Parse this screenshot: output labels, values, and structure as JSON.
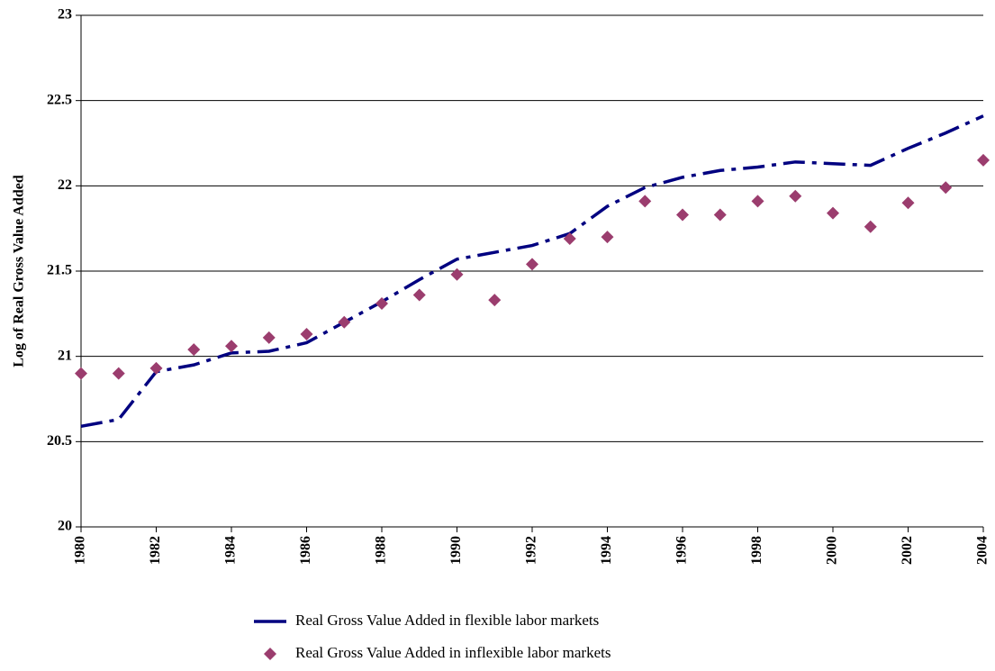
{
  "chart_data": {
    "type": "line",
    "y_label": "Log of Real Gross Value Added",
    "x": [
      1980,
      1981,
      1982,
      1983,
      1984,
      1985,
      1986,
      1987,
      1988,
      1989,
      1990,
      1991,
      1992,
      1993,
      1994,
      1995,
      1996,
      1997,
      1998,
      1999,
      2000,
      2001,
      2002,
      2003,
      2004
    ],
    "xlim": [
      1980,
      2004
    ],
    "xticks": [
      1980,
      1982,
      1984,
      1986,
      1988,
      1990,
      1992,
      1994,
      1996,
      1998,
      2000,
      2002,
      2004
    ],
    "ylim": [
      20,
      23
    ],
    "yticks": [
      20,
      20.5,
      21,
      21.5,
      22,
      22.5,
      23
    ],
    "grid": true,
    "legend": "bottom",
    "series": [
      {
        "name": "Real Gross Value Added in flexible labor markets",
        "type": "line",
        "color": "#000080",
        "values": [
          20.59,
          20.63,
          20.91,
          20.95,
          21.02,
          21.03,
          21.08,
          21.2,
          21.32,
          21.45,
          21.57,
          21.61,
          21.65,
          21.72,
          21.88,
          21.99,
          22.05,
          22.09,
          22.11,
          22.14,
          22.13,
          22.12,
          22.22,
          22.31,
          22.41
        ]
      },
      {
        "name": "Real Gross Value Added in inflexible labor markets",
        "type": "scatter",
        "color": "#9b3d6e",
        "values": [
          20.9,
          20.9,
          20.93,
          21.04,
          21.06,
          21.11,
          21.13,
          21.2,
          21.31,
          21.36,
          21.48,
          21.33,
          21.54,
          21.69,
          21.7,
          21.91,
          21.83,
          21.83,
          21.91,
          21.94,
          21.84,
          21.76,
          21.9,
          21.99,
          22.15
        ]
      }
    ]
  }
}
